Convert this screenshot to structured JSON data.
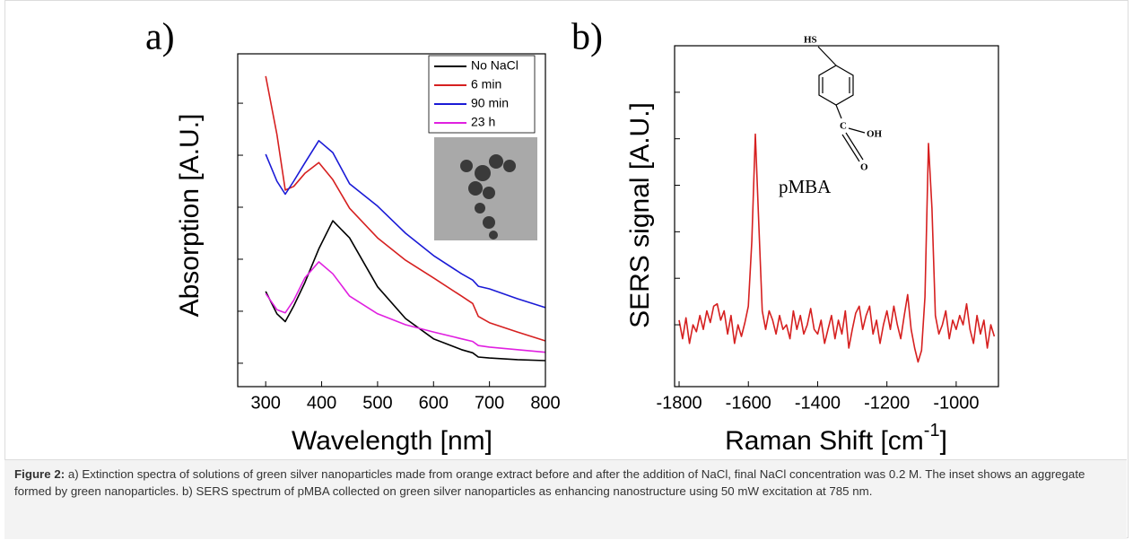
{
  "chart_data": [
    {
      "type": "line",
      "panel_label": "a)",
      "x_label": "Wavelength [nm]",
      "y_label": "Absorption [A.U.]",
      "x": [
        300,
        320,
        335,
        350,
        370,
        395,
        420,
        450,
        500,
        550,
        600,
        650,
        670,
        680,
        700,
        750,
        800
      ],
      "series": [
        {
          "name": "No NaCl",
          "color": "#000000",
          "values": [
            2.38,
            1.95,
            1.8,
            2.1,
            2.55,
            3.2,
            3.74,
            3.41,
            2.47,
            1.86,
            1.47,
            1.26,
            1.2,
            1.12,
            1.1,
            1.07,
            1.05
          ]
        },
        {
          "name": "6 min",
          "color": "#d62020",
          "values": [
            6.52,
            5.4,
            4.33,
            4.4,
            4.65,
            4.86,
            4.53,
            3.98,
            3.41,
            2.98,
            2.64,
            2.29,
            2.15,
            1.9,
            1.78,
            1.6,
            1.43
          ]
        },
        {
          "name": "90 min",
          "color": "#1a1ad6",
          "values": [
            5.02,
            4.5,
            4.25,
            4.5,
            4.85,
            5.28,
            5.05,
            4.45,
            4.02,
            3.5,
            3.07,
            2.72,
            2.6,
            2.48,
            2.43,
            2.24,
            2.07
          ]
        },
        {
          "name": "23 h",
          "color": "#e020e0",
          "values": [
            2.34,
            2.03,
            1.97,
            2.21,
            2.64,
            2.95,
            2.72,
            2.29,
            1.95,
            1.74,
            1.6,
            1.47,
            1.42,
            1.34,
            1.31,
            1.26,
            1.21
          ]
        }
      ],
      "xlim": [
        250,
        800
      ],
      "xticks": [
        300,
        400,
        500,
        600,
        700,
        800
      ],
      "ylim": [
        0.55,
        6.95
      ],
      "yticks": [
        1,
        2,
        3,
        4,
        5,
        6
      ],
      "legend": "upper right"
    },
    {
      "type": "line",
      "panel_label": "b)",
      "x_label": "Raman Shift [cm",
      "x_label_sup": "-1",
      "x_label_end": "]",
      "y_label": "SERS signal [A.U.]",
      "annotations": [
        "HS",
        "C",
        "OH",
        "O",
        "pMBA"
      ],
      "x": [
        -1800,
        -1790,
        -1780,
        -1770,
        -1760,
        -1750,
        -1740,
        -1730,
        -1720,
        -1710,
        -1700,
        -1690,
        -1680,
        -1670,
        -1660,
        -1650,
        -1640,
        -1630,
        -1620,
        -1610,
        -1600,
        -1590,
        -1580,
        -1570,
        -1560,
        -1550,
        -1540,
        -1530,
        -1520,
        -1510,
        -1500,
        -1490,
        -1480,
        -1470,
        -1460,
        -1450,
        -1440,
        -1430,
        -1420,
        -1410,
        -1400,
        -1390,
        -1380,
        -1370,
        -1360,
        -1350,
        -1340,
        -1330,
        -1320,
        -1310,
        -1300,
        -1290,
        -1280,
        -1270,
        -1260,
        -1250,
        -1240,
        -1230,
        -1220,
        -1210,
        -1200,
        -1190,
        -1180,
        -1170,
        -1160,
        -1150,
        -1140,
        -1130,
        -1120,
        -1110,
        -1100,
        -1090,
        -1080,
        -1070,
        -1060,
        -1050,
        -1040,
        -1030,
        -1020,
        -1010,
        -1000,
        -990,
        -980,
        -970,
        -960,
        -950,
        -940,
        -930,
        -920,
        -910,
        -900,
        -890
      ],
      "series": [
        {
          "color": "#d62020",
          "values": [
            1.1,
            0.7,
            1.15,
            0.6,
            1.0,
            0.85,
            1.2,
            0.9,
            1.3,
            1.05,
            1.4,
            1.45,
            1.1,
            1.3,
            0.8,
            1.2,
            0.6,
            1.0,
            0.75,
            1.05,
            1.4,
            2.8,
            5.1,
            3.2,
            1.3,
            0.9,
            1.3,
            1.1,
            0.8,
            1.2,
            0.9,
            1.0,
            0.7,
            1.3,
            0.9,
            1.2,
            0.8,
            1.0,
            1.35,
            0.9,
            0.8,
            1.1,
            0.6,
            0.9,
            1.2,
            0.7,
            1.1,
            0.8,
            1.3,
            0.5,
            0.9,
            1.25,
            1.4,
            0.9,
            1.2,
            1.4,
            0.8,
            1.1,
            0.6,
            1.0,
            1.3,
            0.9,
            1.4,
            1.0,
            0.7,
            1.2,
            1.65,
            0.9,
            0.5,
            0.2,
            0.45,
            1.6,
            4.9,
            3.5,
            1.2,
            0.8,
            1.0,
            1.3,
            0.7,
            1.1,
            0.9,
            1.2,
            1.0,
            1.45,
            0.9,
            0.6,
            1.2,
            0.8,
            1.1,
            0.5,
            1.0,
            0.75
          ]
        }
      ],
      "xlim": [
        -1813,
        -878
      ],
      "xticks": [
        -1800,
        -1600,
        -1400,
        -1200,
        -1000
      ],
      "ylim": [
        -0.33,
        7.0
      ],
      "yticks": [
        1,
        2,
        3,
        4,
        5,
        6
      ]
    }
  ],
  "caption": {
    "label": "Figure 2:",
    "text": " a) Extinction spectra of solutions of green silver nanoparticles made from orange extract before and after the addition of NaCl, final NaCl concentration was 0.2 M. The inset shows an aggregate formed by green nanoparticles. b) SERS spectrum of pMBA collected on green silver nanoparticles as enhancing nanostructure using 50 mW excitation at 785 nm."
  }
}
